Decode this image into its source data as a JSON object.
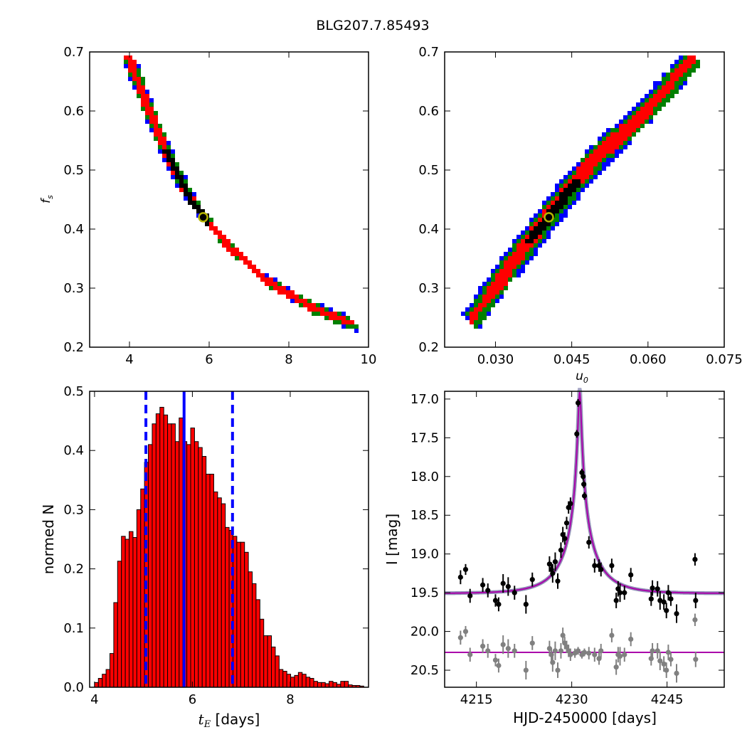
{
  "figure_title": "BLG207.7.85493",
  "colors": {
    "blue": "#0000ff",
    "green": "#008000",
    "red": "#ff0000",
    "black": "#000000",
    "marker_edge": "#b5b500",
    "model_curve": "#aa00aa",
    "model_band": "#8c8cb4",
    "residual_points": "#808080",
    "histogram_fill": "#ff0000"
  },
  "chart_data": [
    {
      "id": "tE_vs_fs",
      "type": "heatmap",
      "title": "",
      "xlabel": "",
      "ylabel": "f_s",
      "ylabel_main": "f",
      "ylabel_sub": "s",
      "xlim": [
        3,
        10
      ],
      "ylim": [
        0.2,
        0.7
      ],
      "xticks": [
        "4",
        "6",
        "8",
        "10"
      ],
      "yticks": [
        "0.2",
        "0.3",
        "0.4",
        "0.5",
        "0.6",
        "0.7"
      ],
      "levels": [
        "blue",
        "green",
        "red",
        "black"
      ],
      "ridge": [
        [
          4.0,
          0.69
        ],
        [
          4.5,
          0.6
        ],
        [
          5.0,
          0.52
        ],
        [
          5.5,
          0.455
        ],
        [
          6.0,
          0.41
        ],
        [
          6.5,
          0.37
        ],
        [
          7.0,
          0.34
        ],
        [
          7.5,
          0.31
        ],
        [
          8.0,
          0.29
        ],
        [
          8.5,
          0.27
        ],
        [
          9.0,
          0.255
        ],
        [
          9.6,
          0.24
        ]
      ],
      "best_fit": {
        "x": 5.85,
        "y": 0.42
      }
    },
    {
      "id": "u0_vs_fs",
      "type": "heatmap",
      "title": "",
      "xlabel": "u_0",
      "xlabel_main": "u",
      "xlabel_sub": "0",
      "ylabel": "",
      "xlim": [
        0.02,
        0.075
      ],
      "ylim": [
        0.2,
        0.7
      ],
      "xticks": [
        "0.030",
        "0.045",
        "0.060",
        "0.075"
      ],
      "yticks": [
        "0.2",
        "0.3",
        "0.4",
        "0.5",
        "0.6",
        "0.7"
      ],
      "levels": [
        "blue",
        "green",
        "red",
        "black"
      ],
      "ridge": [
        [
          0.0255,
          0.245
        ],
        [
          0.03,
          0.3
        ],
        [
          0.035,
          0.36
        ],
        [
          0.04,
          0.415
        ],
        [
          0.045,
          0.47
        ],
        [
          0.05,
          0.52
        ],
        [
          0.055,
          0.56
        ],
        [
          0.06,
          0.6
        ],
        [
          0.065,
          0.65
        ],
        [
          0.069,
          0.69
        ]
      ],
      "best_fit": {
        "x": 0.0405,
        "y": 0.42
      }
    },
    {
      "id": "tE_histogram",
      "type": "bar",
      "title": "",
      "xlabel": "t_E [days]",
      "xlabel_main": "t",
      "xlabel_sub": "E",
      "xlabel_unit": " [days]",
      "ylabel": "normed N",
      "xlim": [
        3.9,
        9.6
      ],
      "ylim": [
        0.0,
        0.5
      ],
      "xticks": [
        "4",
        "6",
        "8"
      ],
      "yticks": [
        "0.0",
        "0.1",
        "0.2",
        "0.3",
        "0.4",
        "0.5"
      ],
      "bin_start": 4.0,
      "bin_width": 0.0786,
      "values": [
        0.008,
        0.015,
        0.022,
        0.03,
        0.057,
        0.143,
        0.213,
        0.255,
        0.25,
        0.263,
        0.253,
        0.3,
        0.335,
        0.38,
        0.41,
        0.445,
        0.462,
        0.473,
        0.46,
        0.445,
        0.445,
        0.415,
        0.455,
        0.415,
        0.41,
        0.438,
        0.415,
        0.405,
        0.39,
        0.36,
        0.36,
        0.33,
        0.32,
        0.31,
        0.27,
        0.265,
        0.255,
        0.245,
        0.245,
        0.228,
        0.195,
        0.175,
        0.148,
        0.115,
        0.087,
        0.087,
        0.068,
        0.053,
        0.03,
        0.027,
        0.022,
        0.017,
        0.02,
        0.025,
        0.022,
        0.017,
        0.015,
        0.01,
        0.008,
        0.008,
        0.006,
        0.01,
        0.008,
        0.005,
        0.01,
        0.01,
        0.004,
        0.003,
        0.003,
        0.002
      ],
      "vlines": [
        {
          "x": 5.05,
          "style": "dashed"
        },
        {
          "x": 5.83,
          "style": "solid"
        },
        {
          "x": 6.82,
          "style": "dashed"
        }
      ]
    },
    {
      "id": "light_curve",
      "type": "scatter",
      "title": "",
      "xlabel": "HJD-2450000 [days]",
      "ylabel": "I [mag]",
      "xlim": [
        4210,
        4254
      ],
      "ylim": [
        20.72,
        16.9
      ],
      "xticks": [
        "4215",
        "4230",
        "4245"
      ],
      "yticks": [
        "17.0",
        "17.5",
        "18.0",
        "18.5",
        "19.0",
        "19.5",
        "20.0",
        "20.5"
      ],
      "model": {
        "t0": 4231.25,
        "u0": 0.0405,
        "tE": 5.85,
        "fs": 0.42,
        "baseline": 19.51
      },
      "residual_baseline": 20.27,
      "series": [
        {
          "name": "",
          "points": [
            [
              4212.5,
              19.3,
              0.09
            ],
            [
              4213.3,
              19.2,
              0.07
            ],
            [
              4214.0,
              19.54,
              0.09
            ],
            [
              4216.0,
              19.4,
              0.09
            ],
            [
              4216.8,
              19.47,
              0.09
            ],
            [
              4218.0,
              19.6,
              0.08
            ],
            [
              4218.5,
              19.65,
              0.09
            ],
            [
              4219.2,
              19.38,
              0.12
            ],
            [
              4220.0,
              19.42,
              0.12
            ],
            [
              4221.0,
              19.5,
              0.09
            ],
            [
              4222.8,
              19.65,
              0.12
            ],
            [
              4223.8,
              19.33,
              0.09
            ],
            [
              4226.5,
              19.13,
              0.1
            ],
            [
              4226.8,
              19.2,
              0.09
            ],
            [
              4227.0,
              19.25,
              0.12
            ],
            [
              4227.4,
              19.1,
              0.12
            ],
            [
              4227.8,
              19.35,
              0.1
            ],
            [
              4228.3,
              18.95,
              0.1
            ],
            [
              4228.6,
              18.75,
              0.1
            ],
            [
              4228.9,
              18.8,
              0.08
            ],
            [
              4229.2,
              18.6,
              0.08
            ],
            [
              4229.5,
              18.4,
              0.08
            ],
            [
              4229.8,
              18.35,
              0.08
            ],
            [
              4230.8,
              17.45,
              0.05
            ],
            [
              4231.0,
              17.05,
              0.05
            ],
            [
              4231.6,
              17.95,
              0.05
            ],
            [
              4231.8,
              18.0,
              0.05
            ],
            [
              4231.9,
              18.1,
              0.05
            ],
            [
              4232.0,
              18.25,
              0.05
            ],
            [
              4232.7,
              18.85,
              0.08
            ],
            [
              4233.6,
              19.15,
              0.09
            ],
            [
              4234.3,
              19.15,
              0.08
            ],
            [
              4234.6,
              19.2,
              0.09
            ],
            [
              4236.3,
              19.15,
              0.09
            ],
            [
              4237.0,
              19.6,
              0.1
            ],
            [
              4237.3,
              19.45,
              0.1
            ],
            [
              4237.6,
              19.5,
              0.12
            ],
            [
              4238.3,
              19.5,
              0.09
            ],
            [
              4239.3,
              19.27,
              0.09
            ],
            [
              4242.5,
              19.58,
              0.09
            ],
            [
              4242.7,
              19.44,
              0.1
            ],
            [
              4243.5,
              19.45,
              0.1
            ],
            [
              4243.9,
              19.6,
              0.12
            ],
            [
              4244.5,
              19.62,
              0.1
            ],
            [
              4244.9,
              19.73,
              0.1
            ],
            [
              4245.2,
              19.5,
              0.1
            ],
            [
              4245.6,
              19.58,
              0.09
            ],
            [
              4246.5,
              19.77,
              0.12
            ],
            [
              4249.4,
              19.07,
              0.08
            ],
            [
              4249.5,
              19.6,
              0.1
            ]
          ]
        },
        {
          "name": "",
          "points": [
            [
              4212.5,
              20.08,
              0.09
            ],
            [
              4213.3,
              20.0,
              0.07
            ],
            [
              4214.0,
              20.3,
              0.09
            ],
            [
              4216.0,
              20.19,
              0.09
            ],
            [
              4216.8,
              20.25,
              0.09
            ],
            [
              4218.0,
              20.37,
              0.08
            ],
            [
              4218.5,
              20.44,
              0.09
            ],
            [
              4219.2,
              20.17,
              0.12
            ],
            [
              4220.0,
              20.22,
              0.12
            ],
            [
              4221.0,
              20.25,
              0.09
            ],
            [
              4222.8,
              20.5,
              0.12
            ],
            [
              4223.8,
              20.15,
              0.09
            ],
            [
              4226.5,
              20.22,
              0.1
            ],
            [
              4226.8,
              20.3,
              0.09
            ],
            [
              4227.0,
              20.4,
              0.12
            ],
            [
              4227.4,
              20.25,
              0.12
            ],
            [
              4227.8,
              20.5,
              0.1
            ],
            [
              4228.3,
              20.25,
              0.1
            ],
            [
              4228.6,
              20.05,
              0.1
            ],
            [
              4228.9,
              20.15,
              0.08
            ],
            [
              4229.2,
              20.2,
              0.08
            ],
            [
              4229.5,
              20.25,
              0.08
            ],
            [
              4229.8,
              20.3,
              0.08
            ],
            [
              4230.5,
              20.28,
              0.06
            ],
            [
              4231.0,
              20.25,
              0.05
            ],
            [
              4231.6,
              20.3,
              0.05
            ],
            [
              4232.0,
              20.27,
              0.05
            ],
            [
              4232.7,
              20.28,
              0.08
            ],
            [
              4233.6,
              20.3,
              0.09
            ],
            [
              4234.3,
              20.35,
              0.08
            ],
            [
              4234.6,
              20.25,
              0.09
            ],
            [
              4236.3,
              20.05,
              0.09
            ],
            [
              4237.0,
              20.46,
              0.1
            ],
            [
              4237.3,
              20.3,
              0.1
            ],
            [
              4237.6,
              20.32,
              0.12
            ],
            [
              4238.3,
              20.3,
              0.09
            ],
            [
              4239.3,
              20.1,
              0.09
            ],
            [
              4242.5,
              20.35,
              0.09
            ],
            [
              4242.7,
              20.25,
              0.1
            ],
            [
              4243.5,
              20.25,
              0.1
            ],
            [
              4243.9,
              20.38,
              0.12
            ],
            [
              4244.5,
              20.42,
              0.1
            ],
            [
              4244.9,
              20.5,
              0.1
            ],
            [
              4245.2,
              20.27,
              0.1
            ],
            [
              4245.6,
              20.36,
              0.09
            ],
            [
              4246.5,
              20.54,
              0.12
            ],
            [
              4249.4,
              19.85,
              0.08
            ],
            [
              4249.5,
              20.36,
              0.1
            ]
          ]
        }
      ]
    }
  ]
}
